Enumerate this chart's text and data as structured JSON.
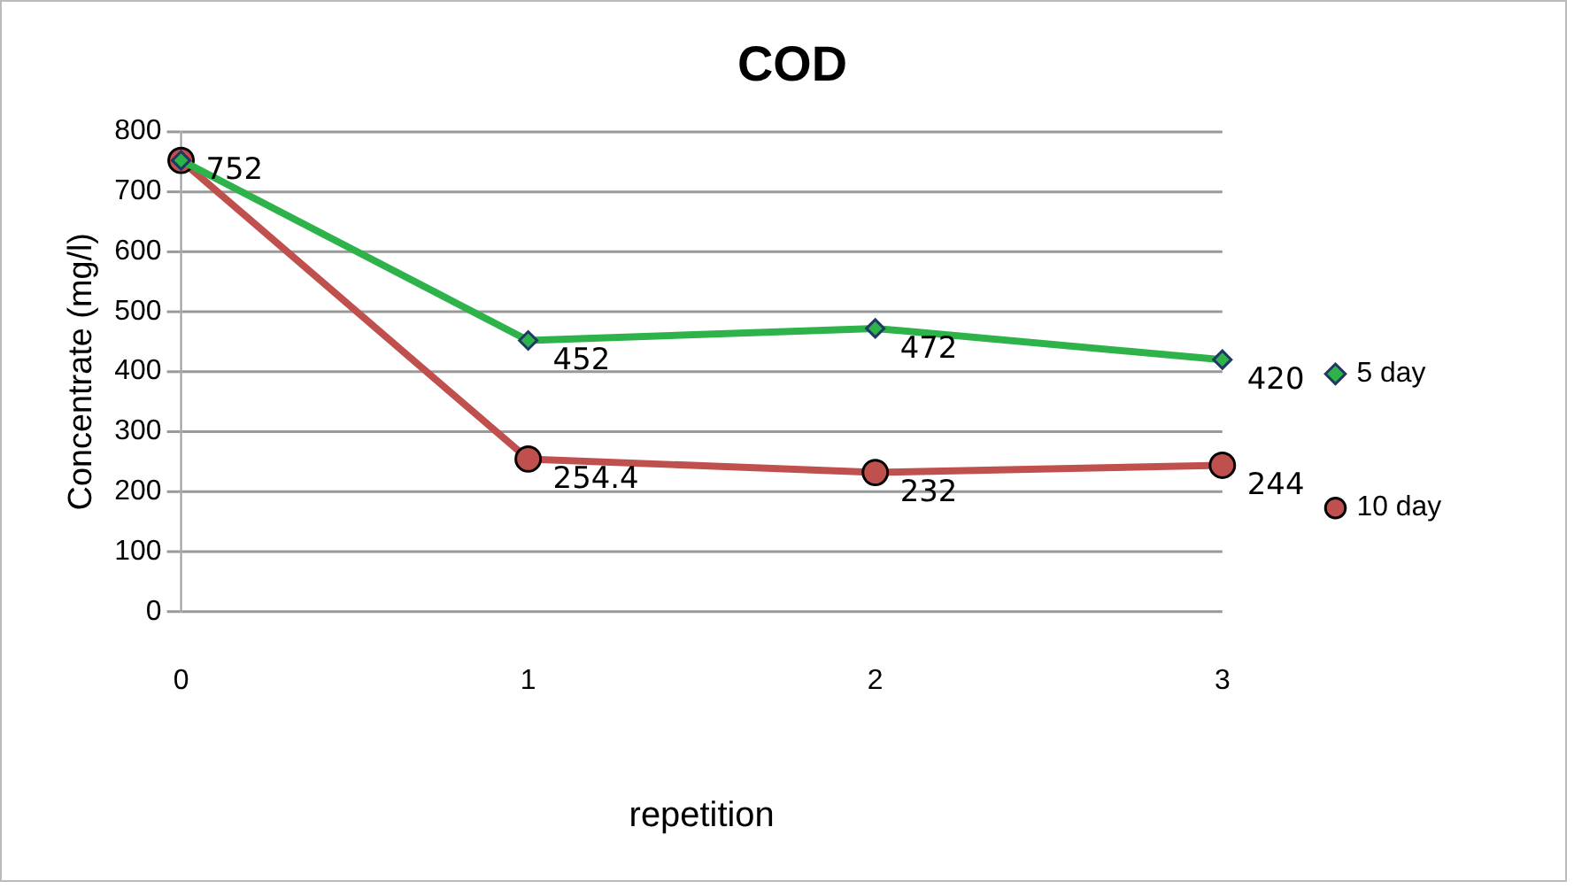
{
  "chart_data": {
    "type": "line",
    "title": "COD",
    "xlabel": "repetition",
    "ylabel": "Concentrate (mg/l)",
    "categories": [
      "0",
      "1",
      "2",
      "3"
    ],
    "series": [
      {
        "name": "5 day",
        "color": "#2db34a",
        "marker": "diamond",
        "values": [
          752,
          452,
          472,
          420
        ],
        "value_labels": [
          "752",
          "452",
          "472",
          "420"
        ]
      },
      {
        "name": "10 day",
        "color": "#c0504d",
        "marker": "circle",
        "values": [
          752,
          254.4,
          232,
          244
        ],
        "value_labels": [
          null,
          "254.4",
          "232",
          "244"
        ]
      }
    ],
    "ylim": [
      0,
      800
    ],
    "yticks": [
      0,
      100,
      200,
      300,
      400,
      500,
      600,
      700,
      800
    ],
    "grid": "y",
    "legend": "right",
    "line_style": "solid"
  }
}
